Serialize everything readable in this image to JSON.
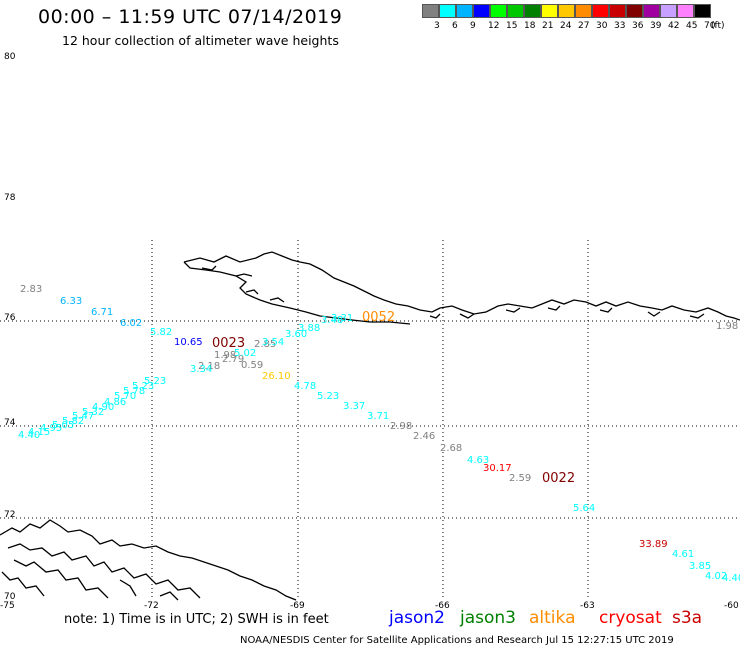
{
  "header": {
    "title": "00:00 – 11:59 UTC 07/14/2019",
    "subtitle": "12 hour collection of altimeter wave heights"
  },
  "scale": {
    "colors": [
      "#808080",
      "#00ffff",
      "#00b4ff",
      "#0000ff",
      "#00ff00",
      "#00c800",
      "#008000",
      "#ffff00",
      "#ffc800",
      "#ff8c00",
      "#ff0000",
      "#c80000",
      "#800000",
      "#a000a0",
      "#c8a0ff",
      "#ff80ff",
      "#000000"
    ],
    "labels": [
      "3",
      "6",
      "9",
      "12",
      "15",
      "18",
      "21",
      "24",
      "27",
      "30",
      "33",
      "36",
      "39",
      "42",
      "45",
      "70"
    ],
    "unit": "(ft)"
  },
  "axes": {
    "lat_labels": [
      "80",
      "78",
      "76",
      "74",
      "72",
      "70"
    ],
    "lon_labels": [
      "-75",
      "-72",
      "-69",
      "-66",
      "-63",
      "-60"
    ]
  },
  "observations": [
    {
      "v": "2.83",
      "c": "#808080"
    },
    {
      "v": "6.33",
      "c": "#00b4ff"
    },
    {
      "v": "6.71",
      "c": "#00b4ff"
    },
    {
      "v": "6.02",
      "c": "#00b4ff"
    },
    {
      "v": "5.82",
      "c": "#00ffff"
    },
    {
      "v": "10.65",
      "c": "#0000ff"
    },
    {
      "v": "1.98",
      "c": "#808080"
    },
    {
      "v": "2.79",
      "c": "#808080"
    },
    {
      "v": "2.18",
      "c": "#808080"
    },
    {
      "v": "3.34",
      "c": "#00ffff"
    },
    {
      "v": "5.02",
      "c": "#00ffff"
    },
    {
      "v": "0.59",
      "c": "#808080"
    },
    {
      "v": "2.85",
      "c": "#808080"
    },
    {
      "v": "3.54",
      "c": "#00ffff"
    },
    {
      "v": "3.60",
      "c": "#00ffff"
    },
    {
      "v": "3.88",
      "c": "#00ffff"
    },
    {
      "v": "3.48",
      "c": "#00ffff"
    },
    {
      "v": "3.31",
      "c": "#00ffff"
    },
    {
      "v": "26.10",
      "c": "#ffc800"
    },
    {
      "v": "4.78",
      "c": "#00ffff"
    },
    {
      "v": "5.23",
      "c": "#00ffff"
    },
    {
      "v": "3.37",
      "c": "#00ffff"
    },
    {
      "v": "3.71",
      "c": "#00ffff"
    },
    {
      "v": "2.98",
      "c": "#808080"
    },
    {
      "v": "2.46",
      "c": "#808080"
    },
    {
      "v": "2.68",
      "c": "#808080"
    },
    {
      "v": "4.63",
      "c": "#00ffff"
    },
    {
      "v": "30.17",
      "c": "#ff0000"
    },
    {
      "v": "2.59",
      "c": "#808080"
    },
    {
      "v": "5.64",
      "c": "#00ffff"
    },
    {
      "v": "33.89",
      "c": "#c80000"
    },
    {
      "v": "4.61",
      "c": "#00ffff"
    },
    {
      "v": "3.85",
      "c": "#00ffff"
    },
    {
      "v": "4.02",
      "c": "#00ffff"
    },
    {
      "v": "4.40",
      "c": "#00ffff"
    },
    {
      "v": "1.98",
      "c": "#808080"
    },
    {
      "v": "5.23",
      "c": "#00ffff"
    },
    {
      "v": "5.23",
      "c": "#00ffff"
    },
    {
      "v": "5.78",
      "c": "#00ffff"
    },
    {
      "v": "5.70",
      "c": "#00ffff"
    },
    {
      "v": "4.86",
      "c": "#00ffff"
    },
    {
      "v": "4.90",
      "c": "#00ffff"
    },
    {
      "v": "5.32",
      "c": "#00ffff"
    },
    {
      "v": "5.47",
      "c": "#00ffff"
    },
    {
      "v": "5.82",
      "c": "#00ffff"
    },
    {
      "v": "5.05",
      "c": "#00ffff"
    },
    {
      "v": "4.95",
      "c": "#00ffff"
    },
    {
      "v": "4.15",
      "c": "#00ffff"
    },
    {
      "v": "4.40",
      "c": "#00ffff"
    }
  ],
  "cycles": [
    {
      "v": "0023",
      "c": "#800000"
    },
    {
      "v": "0052",
      "c": "#ff8c00"
    },
    {
      "v": "0022",
      "c": "#800000"
    }
  ],
  "footer": {
    "note": "note:  1) Time is in UTC;  2) SWH is in feet",
    "satellites": [
      {
        "name": "jason2",
        "color": "#0000ff"
      },
      {
        "name": "jason3",
        "color": "#008000"
      },
      {
        "name": "altika",
        "color": "#ff8c00"
      },
      {
        "name": "cryosat",
        "color": "#ff0000"
      },
      {
        "name": "s3a",
        "color": "#c80000"
      }
    ],
    "credit": "NOAA/NESDIS Center for Satellite Applications and Research    Jul 15 12:27:15 UTC 2019"
  }
}
